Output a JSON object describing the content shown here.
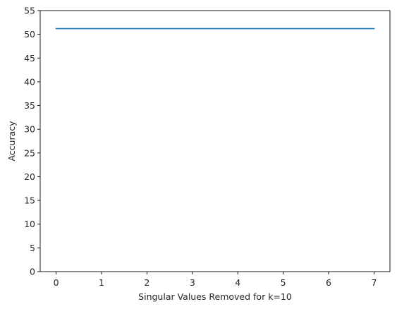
{
  "chart_data": {
    "type": "line",
    "title": "",
    "xlabel": "Singular Values Removed for k=10",
    "ylabel": "Accuracy",
    "x": [
      0,
      1,
      2,
      3,
      4,
      5,
      6,
      7
    ],
    "series": [
      {
        "values": [
          51.2,
          51.2,
          51.2,
          51.2,
          51.2,
          51.2,
          51.2,
          51.2
        ],
        "color": "#1f77b4"
      }
    ],
    "xlim": [
      -0.35,
      7.35
    ],
    "ylim": [
      0,
      55
    ],
    "xticks": [
      "0",
      "1",
      "2",
      "3",
      "4",
      "5",
      "6",
      "7"
    ],
    "yticks": [
      "0",
      "5",
      "10",
      "15",
      "20",
      "25",
      "30",
      "35",
      "40",
      "45",
      "50",
      "55"
    ],
    "grid": false,
    "legend": "none"
  }
}
